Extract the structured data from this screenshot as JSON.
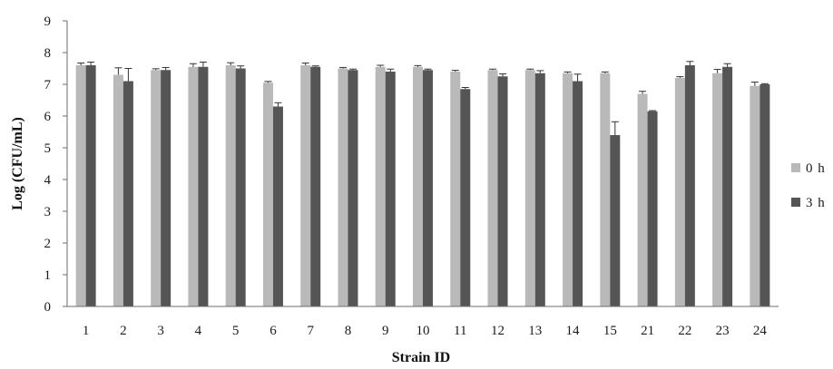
{
  "chart_data": {
    "type": "bar",
    "xlabel": "Strain ID",
    "ylabel": "Log (CFU/mL)",
    "ylim": [
      0,
      9
    ],
    "yticks": [
      0,
      1,
      2,
      3,
      4,
      5,
      6,
      7,
      8,
      9
    ],
    "grid": false,
    "legend_position": "right",
    "error_bars": true,
    "categories": [
      "1",
      "2",
      "3",
      "4",
      "5",
      "6",
      "7",
      "8",
      "9",
      "10",
      "11",
      "12",
      "13",
      "14",
      "15",
      "21",
      "22",
      "23",
      "24"
    ],
    "series": [
      {
        "name": "0 h",
        "color": "#b9b9b9",
        "values": [
          7.6,
          7.3,
          7.45,
          7.55,
          7.6,
          7.05,
          7.6,
          7.5,
          7.55,
          7.55,
          7.4,
          7.45,
          7.45,
          7.35,
          7.35,
          6.7,
          7.2,
          7.35,
          6.95
        ],
        "errors": [
          0.07,
          0.22,
          0.04,
          0.1,
          0.08,
          0.04,
          0.07,
          0.03,
          0.05,
          0.04,
          0.04,
          0.03,
          0.03,
          0.04,
          0.04,
          0.08,
          0.04,
          0.12,
          0.12
        ]
      },
      {
        "name": "3 h",
        "color": "#555555",
        "values": [
          7.6,
          7.1,
          7.45,
          7.55,
          7.5,
          6.3,
          7.55,
          7.45,
          7.4,
          7.45,
          6.85,
          7.25,
          7.35,
          7.1,
          5.4,
          6.15,
          7.6,
          7.55,
          7.0
        ],
        "errors": [
          0.1,
          0.4,
          0.08,
          0.15,
          0.08,
          0.12,
          0.03,
          0.03,
          0.08,
          0.03,
          0.05,
          0.08,
          0.08,
          0.22,
          0.42,
          0.02,
          0.12,
          0.1,
          0.02
        ]
      }
    ]
  }
}
